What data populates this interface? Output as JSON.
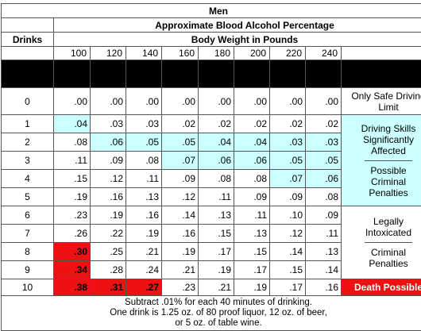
{
  "title": "Men",
  "subtitle": "Approximate Blood Alcohol Percentage",
  "drinks_header": "Drinks",
  "weight_header": "Body Weight in Pounds",
  "weights": [
    "100",
    "120",
    "140",
    "160",
    "180",
    "200",
    "220",
    "240"
  ],
  "rows": [
    {
      "drinks": "0",
      "values": [
        ".00",
        ".00",
        ".00",
        ".00",
        ".00",
        ".00",
        ".00",
        ".00"
      ]
    },
    {
      "drinks": "1",
      "values": [
        ".04",
        ".03",
        ".03",
        ".02",
        ".02",
        ".02",
        ".02",
        ".02"
      ]
    },
    {
      "drinks": "2",
      "values": [
        ".08",
        ".06",
        ".05",
        ".05",
        ".04",
        ".04",
        ".03",
        ".03"
      ]
    },
    {
      "drinks": "3",
      "values": [
        ".11",
        ".09",
        ".08",
        ".07",
        ".06",
        ".06",
        ".05",
        ".05"
      ]
    },
    {
      "drinks": "4",
      "values": [
        ".15",
        ".12",
        ".11",
        ".09",
        ".08",
        ".08",
        ".07",
        ".06"
      ]
    },
    {
      "drinks": "5",
      "values": [
        ".19",
        ".16",
        ".13",
        ".12",
        ".11",
        ".09",
        ".09",
        ".08"
      ]
    },
    {
      "drinks": "6",
      "values": [
        ".23",
        ".19",
        ".16",
        ".14",
        ".13",
        ".11",
        ".10",
        ".09"
      ]
    },
    {
      "drinks": "7",
      "values": [
        ".26",
        ".22",
        ".19",
        ".16",
        ".15",
        ".13",
        ".12",
        ".11"
      ]
    },
    {
      "drinks": "8",
      "values": [
        ".30",
        ".25",
        ".21",
        ".19",
        ".17",
        ".15",
        ".14",
        ".13"
      ]
    },
    {
      "drinks": "9",
      "values": [
        ".34",
        ".28",
        ".24",
        ".21",
        ".19",
        ".17",
        ".15",
        ".14"
      ]
    },
    {
      "drinks": "10",
      "values": [
        ".38",
        ".31",
        ".27",
        ".23",
        ".21",
        ".19",
        ".17",
        ".16"
      ]
    }
  ],
  "legend": {
    "safe": "Only Safe Driving Limit",
    "impaired": "Driving Skills Significantly Affected",
    "penalties": "Possible Criminal Penalties",
    "intoxicated": "Legally Intoxicated",
    "criminal": "Criminal Penalties",
    "death": "Death Possible"
  },
  "footnote": {
    "line1": "Subtract .01% for each 40 minutes of drinking.",
    "line2": "One drink is 1.25 oz. of 80 proof liquor, 12 oz. of beer,",
    "line3": "or 5 oz. of table wine."
  },
  "colors": {
    "impaired": "#ccffff",
    "danger": "#ee1111",
    "header_band": "#000000"
  }
}
